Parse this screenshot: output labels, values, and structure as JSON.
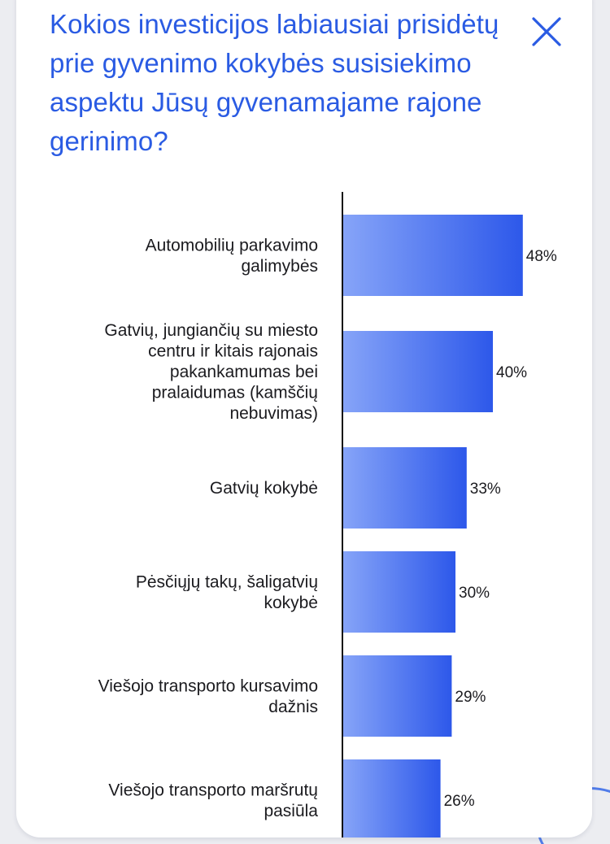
{
  "title": "Kokios investicijos labiausiai prisidėtų prie gyvenimo kokybės susisiekimo aspektu Jūsų gyvenamajame rajone gerinimo?",
  "close_icon": "close-icon",
  "colors": {
    "title": "#2a5be3",
    "bar_start": "#86a4f8",
    "bar_end": "#2d58ea",
    "axis": "#111111",
    "text": "#1b1b1f"
  },
  "chart_data": {
    "type": "bar",
    "orientation": "horizontal",
    "categories": [
      [
        "Automobilių parkavimo",
        "galimybės"
      ],
      [
        "Gatvių, jungiančių su miesto",
        "centru ir kitais rajonais",
        "pakankamumas bei",
        "pralaidumas (kamščių",
        "nebuvimas)"
      ],
      [
        "Gatvių kokybė"
      ],
      [
        "Pėsčiųjų takų, šaligatvių",
        "kokybė"
      ],
      [
        "Viešojo transporto kursavimo",
        "dažnis"
      ],
      [
        "Viešojo transporto maršrutų",
        "pasiūla"
      ]
    ],
    "values": [
      48,
      40,
      33,
      30,
      29,
      26
    ],
    "value_labels": [
      "48%",
      "40%",
      "33%",
      "30%",
      "29%",
      "26%"
    ],
    "xlim": [
      0,
      100
    ]
  }
}
